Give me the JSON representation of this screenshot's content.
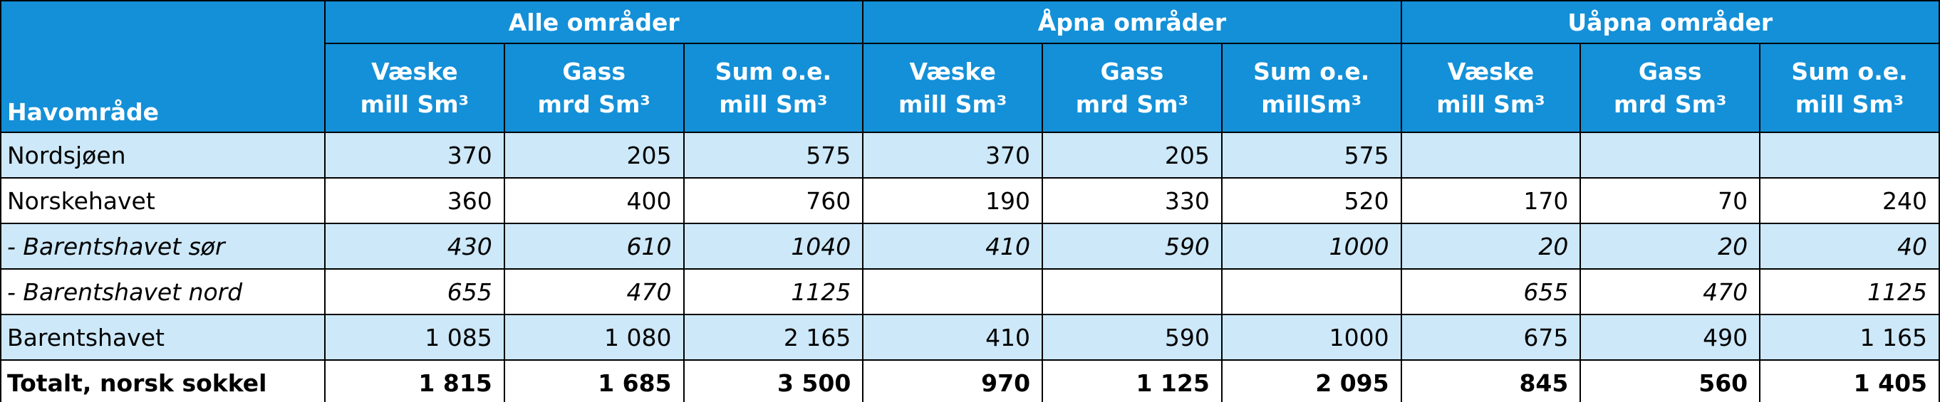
{
  "table": {
    "corner": "Havområde",
    "groups": [
      "Alle områder",
      "Åpna områder",
      "Uåpna områder"
    ],
    "subheaders": [
      [
        "Væske",
        "mill Sm³"
      ],
      [
        "Gass",
        "mrd Sm³"
      ],
      [
        "Sum o.e.",
        "mill Sm³"
      ],
      [
        "Væske",
        "mill Sm³"
      ],
      [
        "Gass",
        "mrd Sm³"
      ],
      [
        "Sum o.e.",
        "millSm³"
      ],
      [
        "Væske",
        "mill Sm³"
      ],
      [
        "Gass",
        "mrd Sm³"
      ],
      [
        "Sum o.e.",
        "mill Sm³"
      ]
    ],
    "rows": [
      [
        "Nordsjøen",
        "370",
        "205",
        "575",
        "370",
        "205",
        "575",
        null,
        null,
        null
      ],
      [
        "Norskehavet",
        "360",
        "400",
        "760",
        "190",
        "330",
        "520",
        "170",
        "70",
        "240"
      ],
      [
        "- Barentshavet sør",
        "430",
        "610",
        "1040",
        "410",
        "590",
        "1000",
        "20",
        "20",
        "40"
      ],
      [
        "- Barentshavet nord",
        "655",
        "470",
        "1125",
        null,
        null,
        null,
        "655",
        "470",
        "1125"
      ],
      [
        "Barentshavet",
        "1 085",
        "1 080",
        "2 165",
        "410",
        "590",
        "1000",
        "675",
        "490",
        "1 165"
      ],
      [
        "Totalt, norsk sokkel",
        "1 815",
        "1 685",
        "3 500",
        "970",
        "1 125",
        "2 095",
        "845",
        "560",
        "1 405"
      ]
    ]
  }
}
